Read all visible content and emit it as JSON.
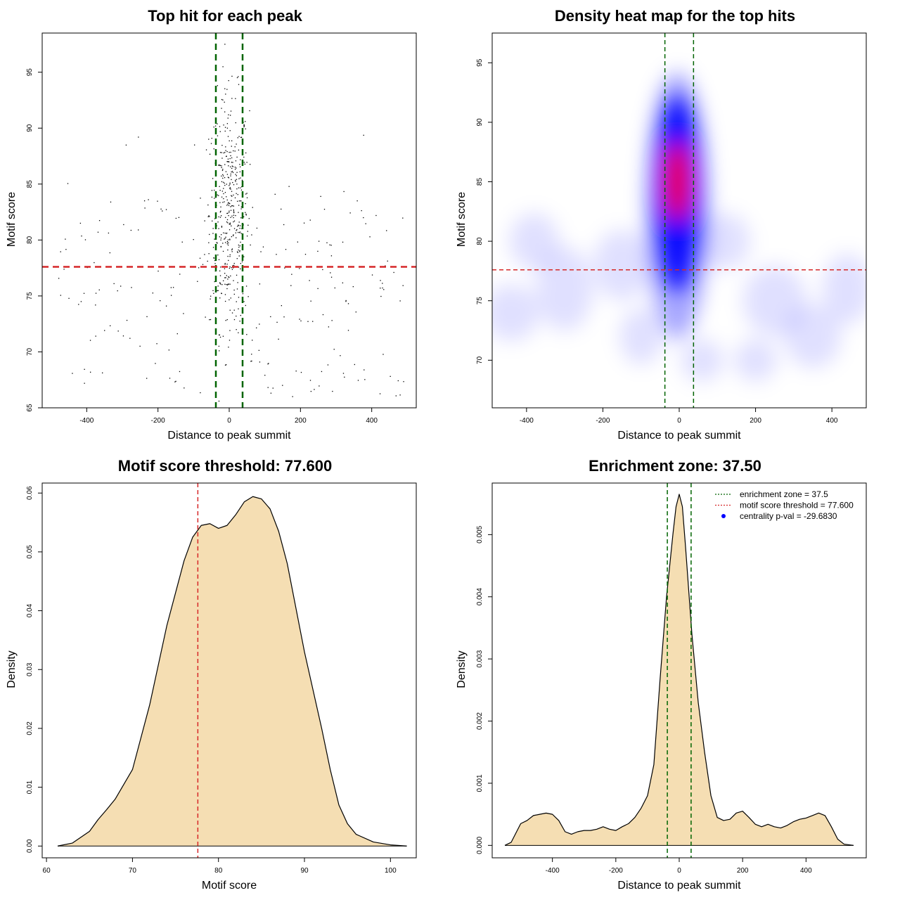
{
  "colors": {
    "green": "#006400",
    "red": "#d62728",
    "fill": "#f5deb3",
    "heat_low": "#ffffff",
    "heat_mid": "#0000ff",
    "heat_high": "#ff0000"
  },
  "chart_data": [
    {
      "type": "scatter",
      "title": "Top hit for each peak",
      "xlabel": "Distance to peak summit",
      "ylabel": "Motif score",
      "xlim": [
        -525,
        525
      ],
      "ylim": [
        65,
        98.5
      ],
      "xticks": [
        -400,
        -200,
        0,
        200,
        400
      ],
      "yticks": [
        65,
        70,
        75,
        80,
        85,
        90,
        95
      ],
      "vlines": [
        -37.5,
        37.5
      ],
      "hline": 77.6,
      "n_points": 650,
      "points_description": "dense cluster centered at x≈0 (|x|<60), y 66–97; sparse background across x -490..490, y 66–92"
    },
    {
      "type": "heatmap",
      "title": "Density heat map for the top hits",
      "xlabel": "Distance to peak summit",
      "ylabel": "Motif score",
      "xlim": [
        -490,
        490
      ],
      "ylim": [
        66,
        97.5
      ],
      "xticks": [
        -400,
        -200,
        0,
        200,
        400
      ],
      "yticks": [
        70,
        75,
        80,
        85,
        90,
        95
      ],
      "vlines": [
        -37.5,
        37.5
      ],
      "hline": 77.6,
      "peak": {
        "x": -5,
        "y": 85
      }
    },
    {
      "type": "area",
      "title": "Motif score threshold: 77.600",
      "xlabel": "Motif score",
      "ylabel": "Density",
      "xlim": [
        59.5,
        103
      ],
      "ylim": [
        -0.002,
        0.0617
      ],
      "xticks": [
        60,
        70,
        80,
        90,
        100
      ],
      "yticks": [
        "0.00",
        "0.01",
        "0.02",
        "0.03",
        "0.04",
        "0.05",
        "0.06"
      ],
      "vline": 77.6,
      "x": [
        61.3,
        63,
        65,
        66,
        67,
        68,
        70,
        72,
        74,
        76,
        77,
        78,
        79,
        80,
        81,
        82,
        83,
        84,
        85,
        86,
        87,
        88,
        89,
        90,
        91,
        92,
        93,
        94,
        95,
        96,
        98,
        100,
        101.9
      ],
      "y": [
        0.0,
        0.0005,
        0.0025,
        0.0045,
        0.0062,
        0.008,
        0.013,
        0.024,
        0.0375,
        0.0485,
        0.0525,
        0.0545,
        0.0548,
        0.054,
        0.0545,
        0.0563,
        0.0585,
        0.0594,
        0.059,
        0.0573,
        0.0535,
        0.048,
        0.0405,
        0.033,
        0.0265,
        0.02,
        0.013,
        0.007,
        0.0038,
        0.002,
        0.0007,
        0.0002,
        0.0
      ]
    },
    {
      "type": "area",
      "title": "Enrichment zone: 37.50",
      "xlabel": "Distance to peak summit",
      "ylabel": "Density",
      "xlim": [
        -590,
        590
      ],
      "ylim": [
        -0.0002,
        0.00583
      ],
      "xticks": [
        -400,
        -200,
        0,
        200,
        400
      ],
      "yticks": [
        "0.000",
        "0.001",
        "0.002",
        "0.003",
        "0.004",
        "0.005"
      ],
      "vlines": [
        -37.5,
        37.5
      ],
      "x": [
        -550,
        -530,
        -500,
        -480,
        -460,
        -440,
        -420,
        -400,
        -380,
        -360,
        -340,
        -320,
        -300,
        -280,
        -260,
        -240,
        -220,
        -200,
        -180,
        -160,
        -140,
        -120,
        -100,
        -80,
        -60,
        -40,
        -20,
        -10,
        0,
        10,
        20,
        40,
        60,
        80,
        100,
        120,
        140,
        160,
        180,
        200,
        220,
        240,
        260,
        280,
        300,
        320,
        340,
        360,
        380,
        400,
        420,
        440,
        460,
        480,
        500,
        520,
        550
      ],
      "y": [
        0.0,
        5e-05,
        0.00035,
        0.0004,
        0.00048,
        0.0005,
        0.00052,
        0.0005,
        0.0004,
        0.00022,
        0.00018,
        0.00022,
        0.00024,
        0.00024,
        0.00026,
        0.0003,
        0.00026,
        0.00024,
        0.0003,
        0.00035,
        0.00045,
        0.0006,
        0.0008,
        0.0013,
        0.0027,
        0.004,
        0.005,
        0.00545,
        0.00565,
        0.00545,
        0.0048,
        0.0034,
        0.0023,
        0.0015,
        0.0008,
        0.00045,
        0.0004,
        0.00042,
        0.00052,
        0.00055,
        0.00045,
        0.00034,
        0.0003,
        0.00034,
        0.0003,
        0.00028,
        0.00032,
        0.00038,
        0.00042,
        0.00044,
        0.00048,
        0.00052,
        0.00048,
        0.0003,
        0.0001,
        2e-05,
        0.0
      ],
      "legend": {
        "position": "top-right",
        "items": [
          {
            "label": "enrichment zone = 37.5",
            "style": "dotted",
            "color": "#006400"
          },
          {
            "label": "motif score threshold = 77.600",
            "style": "dotted",
            "color": "#d62728"
          },
          {
            "label": "centrality p-val = -29.6830",
            "style": "point",
            "color": "#0000ff"
          }
        ]
      }
    }
  ]
}
